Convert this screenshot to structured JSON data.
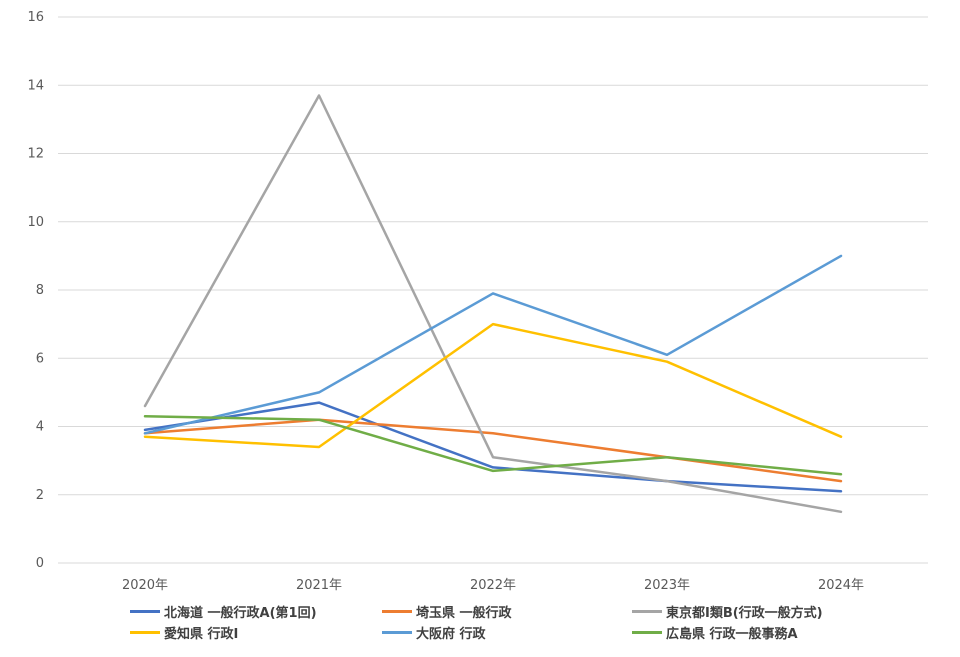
{
  "chart_data": {
    "type": "line",
    "title": "",
    "xlabel": "",
    "ylabel": "",
    "categories": [
      "2020年",
      "2021年",
      "2022年",
      "2023年",
      "2024年"
    ],
    "ylim": [
      0,
      16
    ],
    "yticks": [
      "0",
      "2",
      "4",
      "6",
      "8",
      "10",
      "12",
      "14",
      "16"
    ],
    "grid": true,
    "legend_position": "bottom",
    "series": [
      {
        "name": "北海道 一般行政A(第1回)",
        "color": "#4472C4",
        "values": [
          3.9,
          4.7,
          2.8,
          2.4,
          2.1
        ]
      },
      {
        "name": "埼玉県 一般行政",
        "color": "#ED7D31",
        "values": [
          3.8,
          4.2,
          3.8,
          3.1,
          2.4
        ]
      },
      {
        "name": "東京都Ⅰ類B(行政一般方式)",
        "color": "#A5A5A5",
        "values": [
          4.6,
          13.7,
          3.1,
          2.4,
          1.5
        ]
      },
      {
        "name": "愛知県 行政Ⅰ",
        "color": "#FFC000",
        "values": [
          3.7,
          3.4,
          7.0,
          5.9,
          3.7
        ]
      },
      {
        "name": "大阪府 行政",
        "color": "#5B9BD5",
        "values": [
          3.8,
          5.0,
          7.9,
          6.1,
          9.0
        ]
      },
      {
        "name": "広島県 行政一般事務A",
        "color": "#70AD47",
        "values": [
          4.3,
          4.2,
          2.7,
          3.1,
          2.6
        ]
      }
    ]
  }
}
